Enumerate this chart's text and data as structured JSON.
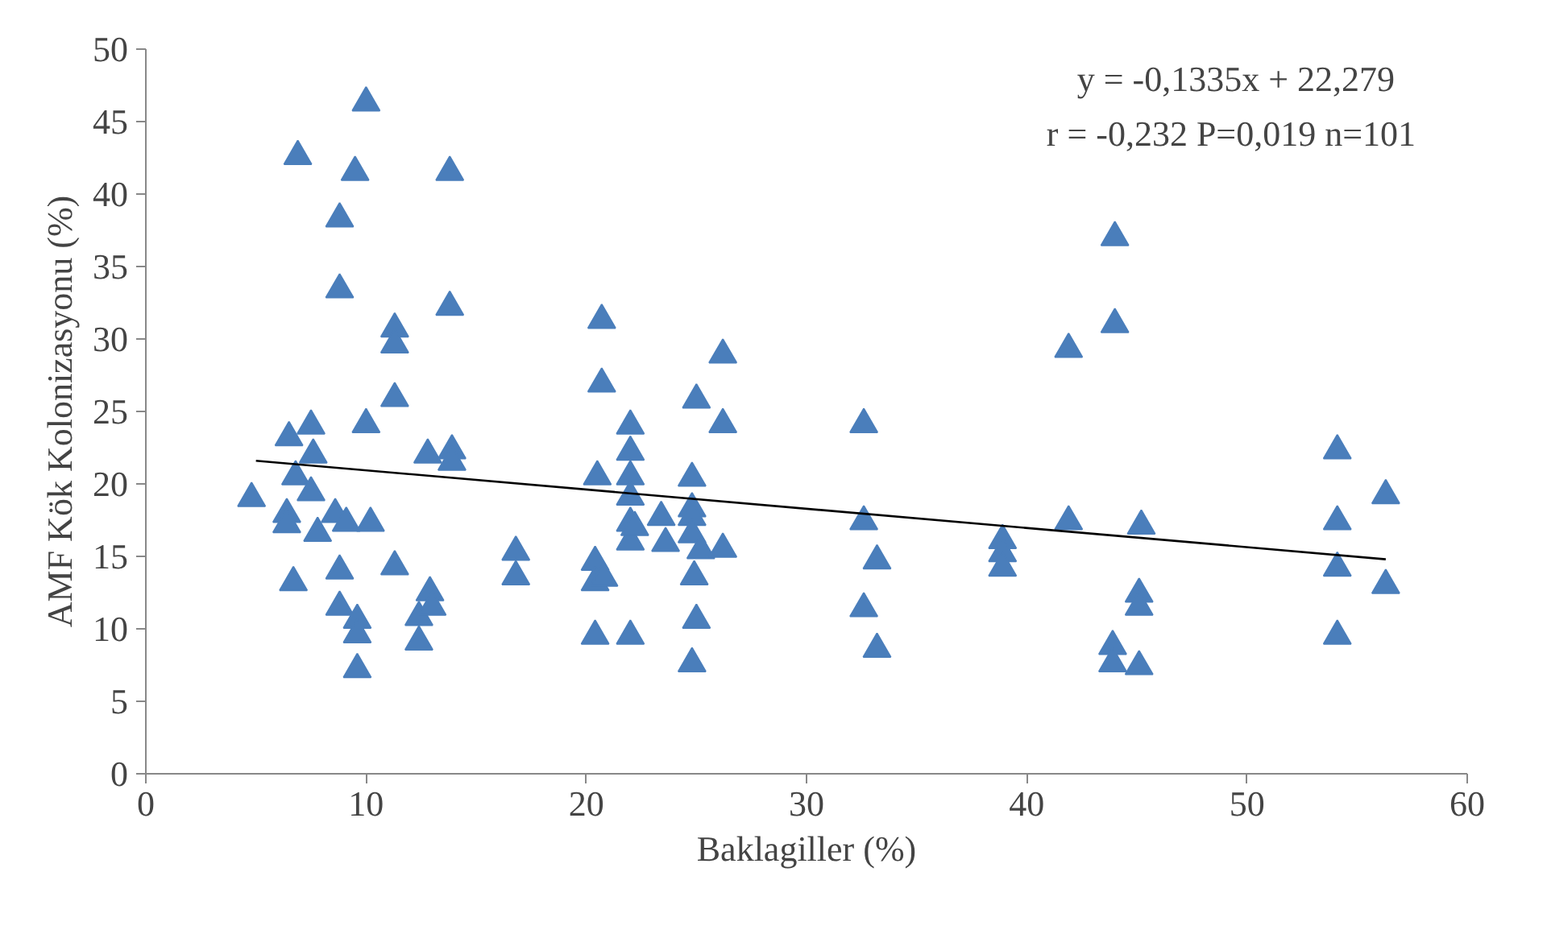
{
  "chart_data": {
    "type": "scatter",
    "xlabel": "Baklagiller (%)",
    "ylabel": "AMF Kök Kolonizasyonu (%)",
    "xlim": [
      0,
      60
    ],
    "ylim": [
      0,
      50
    ],
    "xticks": [
      0,
      10,
      20,
      30,
      40,
      50,
      60
    ],
    "yticks": [
      0,
      5,
      10,
      15,
      20,
      25,
      30,
      35,
      40,
      45,
      50
    ],
    "grid": false,
    "marker": "triangle",
    "annotations": [
      "y = -0,1335x + 22,279",
      "r = -0,232   P=0,019   n=101"
    ],
    "series": [
      {
        "color": "#4a7ebb",
        "x": [
          4.8,
          6.5,
          6.8,
          6.4,
          6.4,
          6.7,
          6.9,
          7.5,
          7.6,
          7.5,
          7.8,
          8.6,
          8.8,
          8.8,
          8.8,
          8.8,
          9.1,
          9.5,
          9.6,
          9.6,
          9.6,
          10.0,
          10.0,
          10.2,
          11.3,
          11.3,
          11.3,
          11.3,
          12.4,
          12.4,
          12.8,
          12.9,
          13.0,
          13.8,
          13.8,
          13.9,
          13.9,
          16.8,
          16.8,
          20.7,
          20.7,
          20.5,
          20.4,
          20.4,
          20.4,
          20.8,
          22.0,
          22.0,
          22.0,
          22.0,
          22.0,
          22.0,
          22.0,
          22.2,
          23.4,
          23.6,
          25.0,
          24.8,
          24.8,
          24.8,
          24.8,
          24.9,
          25.0,
          24.8,
          25.2,
          26.2,
          26.2,
          26.2,
          32.6,
          32.6,
          32.6,
          33.2,
          33.2,
          38.9,
          38.9,
          38.9,
          41.9,
          41.9,
          44.0,
          44.0,
          43.9,
          43.9,
          45.2,
          45.1,
          45.1,
          45.1,
          54.1,
          54.1,
          54.1,
          54.1,
          56.3,
          56.3
        ],
        "values": [
          19.0,
          23.2,
          20.5,
          17.9,
          17.2,
          13.2,
          42.6,
          24.0,
          22.0,
          19.4,
          16.6,
          17.9,
          14.0,
          11.5,
          33.4,
          38.3,
          17.3,
          41.5,
          10.6,
          9.6,
          7.2,
          46.3,
          24.1,
          17.3,
          30.7,
          29.6,
          25.9,
          14.3,
          9.1,
          10.8,
          22.0,
          12.5,
          11.5,
          41.5,
          32.2,
          22.3,
          21.5,
          15.3,
          13.6,
          31.3,
          26.9,
          20.5,
          14.6,
          13.2,
          9.5,
          13.5,
          24.0,
          22.2,
          20.5,
          19.1,
          17.3,
          16.0,
          9.5,
          17.0,
          17.7,
          15.9,
          25.8,
          20.4,
          18.3,
          17.7,
          16.5,
          13.6,
          10.6,
          7.6,
          15.4,
          28.9,
          24.1,
          15.5,
          24.1,
          17.4,
          11.4,
          14.7,
          8.6,
          16.1,
          15.2,
          14.2,
          29.3,
          17.4,
          31.0,
          37.0,
          8.8,
          7.6,
          17.1,
          12.4,
          11.5,
          7.4,
          22.3,
          17.4,
          14.2,
          9.5,
          19.2,
          13.0
        ]
      },
      {
        "type": "line",
        "color": "#000000",
        "x": [
          5,
          56.3
        ],
        "values": [
          21.6,
          14.8
        ],
        "marker": "none"
      }
    ]
  }
}
